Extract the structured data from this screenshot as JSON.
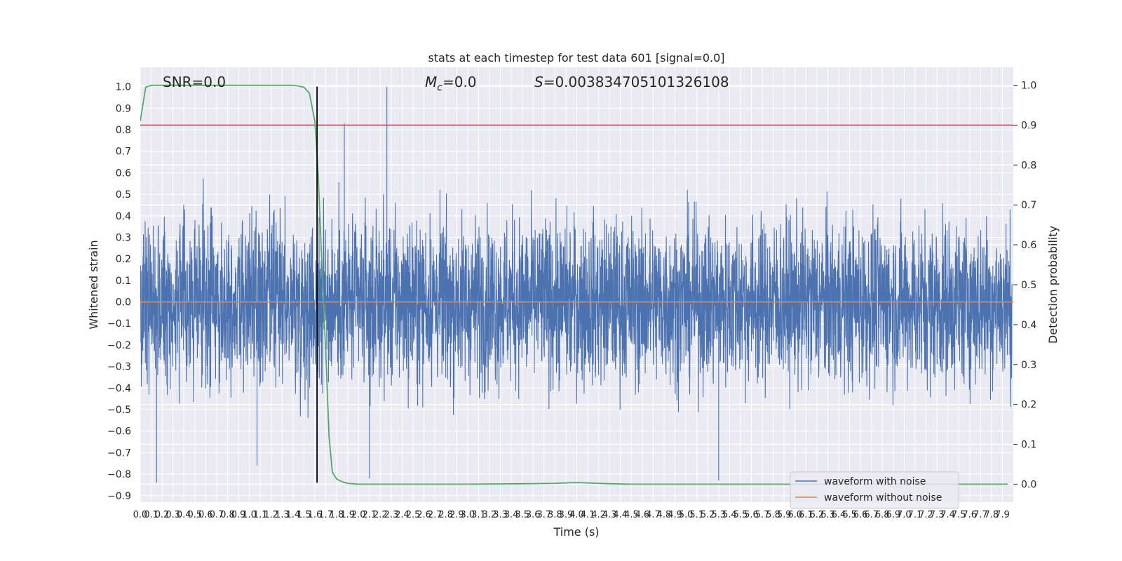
{
  "chart_data": {
    "type": "line",
    "title": "stats at each timestep for test data 601 [signal=0.0]",
    "xlabel": "Time (s)",
    "ylabel": "Whitened strain",
    "y2label": "Detection probability",
    "xlim": [
      0.0,
      8.0
    ],
    "ylim": [
      -0.93,
      1.09
    ],
    "y2lim": [
      -0.045,
      1.045
    ],
    "x_ticks": [
      0.0,
      0.1,
      0.2,
      0.3,
      0.4,
      0.5,
      0.6,
      0.7,
      0.8,
      0.9,
      1.0,
      1.1,
      1.2,
      1.3,
      1.4,
      1.5,
      1.6,
      1.7,
      1.8,
      1.9,
      2.0,
      2.1,
      2.2,
      2.3,
      2.4,
      2.5,
      2.6,
      2.7,
      2.8,
      2.9,
      3.0,
      3.1,
      3.2,
      3.3,
      3.4,
      3.5,
      3.6,
      3.7,
      3.8,
      3.9,
      4.0,
      4.1,
      4.2,
      4.3,
      4.4,
      4.5,
      4.6,
      4.7,
      4.8,
      4.9,
      5.0,
      5.1,
      5.2,
      5.3,
      5.4,
      5.5,
      5.6,
      5.7,
      5.8,
      5.9,
      6.0,
      6.1,
      6.2,
      6.3,
      6.4,
      6.5,
      6.6,
      6.7,
      6.8,
      6.9,
      7.0,
      7.1,
      7.2,
      7.3,
      7.4,
      7.5,
      7.6,
      7.7,
      7.8,
      7.9
    ],
    "x_tick_labels": [
      "0.0",
      "0.1",
      "0.2",
      "0.3",
      "0.4",
      "0.5",
      "0.6",
      "0.7",
      "0.8",
      "0.9",
      "1.0",
      "1.1",
      "1.2",
      "1.3",
      "1.4",
      "1.5",
      "1.6",
      "1.7",
      "1.8",
      "1.9",
      "2.0",
      "2.1",
      "2.2",
      "2.3",
      "2.4",
      "2.5",
      "2.6",
      "2.7",
      "2.8",
      "2.9",
      "3.0",
      "3.1",
      "3.2",
      "3.3",
      "3.4",
      "3.5",
      "3.6",
      "3.7",
      "3.8",
      "3.9",
      "4.0",
      "4.1",
      "4.2",
      "4.3",
      "4.4",
      "4.5",
      "4.6",
      "4.7",
      "4.8",
      "4.9",
      "5.0",
      "5.1",
      "5.2",
      "5.3",
      "5.4",
      "5.5",
      "5.6",
      "5.7",
      "5.8",
      "5.9",
      "6.0",
      "6.1",
      "6.2",
      "6.3",
      "6.4",
      "6.5",
      "6.6",
      "6.7",
      "6.8",
      "6.9",
      "7.0",
      "7.1",
      "7.2",
      "7.3",
      "7.4",
      "7.5",
      "7.6",
      "7.7",
      "7.8",
      "7.9"
    ],
    "y_ticks": [
      1.0,
      0.9,
      0.8,
      0.7,
      0.6,
      0.5,
      0.4,
      0.3,
      0.2,
      0.1,
      0.0,
      -0.1,
      -0.2,
      -0.3,
      -0.4,
      -0.5,
      -0.6,
      -0.7,
      -0.8,
      -0.9
    ],
    "y_tick_labels": [
      "1.0",
      "0.9",
      "0.8",
      "0.7",
      "0.6",
      "0.5",
      "0.4",
      "0.3",
      "0.2",
      "0.1",
      "0.0",
      "−0.1",
      "−0.2",
      "−0.3",
      "−0.4",
      "−0.5",
      "−0.6",
      "−0.7",
      "−0.8",
      "−0.9"
    ],
    "y2_ticks": [
      1.0,
      0.9,
      0.8,
      0.7,
      0.6,
      0.5,
      0.4,
      0.3,
      0.2,
      0.1,
      0.0
    ],
    "y2_tick_labels": [
      "1.0",
      "0.9",
      "0.8",
      "0.7",
      "0.6",
      "0.5",
      "0.4",
      "0.3",
      "0.2",
      "0.1",
      "0.0"
    ],
    "grid": true,
    "legend": "lower-right",
    "annotations": {
      "snr": "SNR=0.0",
      "mc_symbol": "M",
      "mc_sub": "c",
      "mc_value": "=0.0",
      "s_symbol": "S",
      "s_value": "=0.003834705101326108"
    },
    "series": [
      {
        "name": "waveform with noise",
        "color": "#4c72b0",
        "kind": "noise",
        "amplitude_envelope": [
          -0.84,
          1.0
        ],
        "typical_band": [
          -0.25,
          0.27
        ]
      },
      {
        "name": "waveform without noise",
        "color": "#dd8452",
        "x": [
          0.0,
          8.0
        ],
        "y": [
          0.0,
          0.0
        ]
      },
      {
        "name": "",
        "color": "#55a868",
        "axis": "right",
        "x": [
          0.0,
          0.05,
          0.1,
          0.2,
          0.3,
          0.5,
          0.8,
          1.0,
          1.2,
          1.4,
          1.45,
          1.5,
          1.55,
          1.6,
          1.63,
          1.66,
          1.7,
          1.73,
          1.76,
          1.8,
          1.85,
          1.9,
          1.95,
          2.0,
          2.2,
          2.5,
          3.0,
          3.5,
          3.8,
          4.0,
          4.2,
          4.3,
          4.5,
          5.0,
          6.0,
          7.0,
          7.95
        ],
        "y": [
          0.91,
          0.995,
          1.0,
          1.0,
          1.0,
          1.0,
          1.0,
          1.0,
          1.0,
          1.0,
          0.998,
          0.995,
          0.98,
          0.91,
          0.78,
          0.58,
          0.33,
          0.12,
          0.03,
          0.013,
          0.006,
          0.002,
          0.001,
          0.0,
          0.0,
          0.0,
          0.0,
          0.001,
          0.002,
          0.004,
          0.002,
          0.001,
          0.0,
          0.0,
          0.0,
          0.0,
          0.0
        ]
      },
      {
        "name": "",
        "color": "#c44e52",
        "axis": "right",
        "kind": "threshold",
        "y": 0.9
      },
      {
        "name": "",
        "color": "#000000",
        "kind": "vline",
        "x": 1.62,
        "y_range": [
          -0.84,
          1.0
        ]
      }
    ]
  }
}
